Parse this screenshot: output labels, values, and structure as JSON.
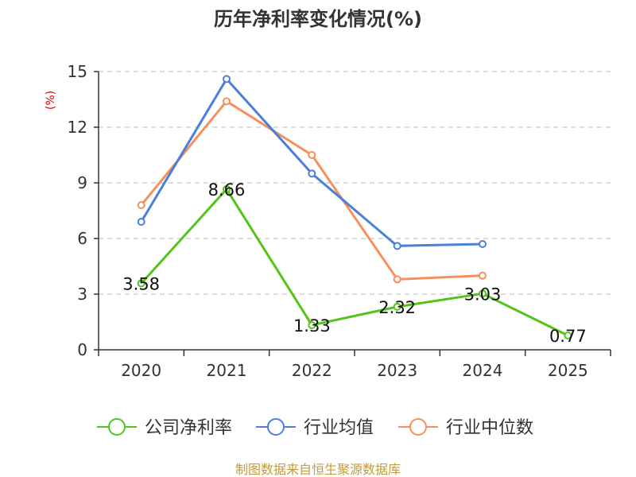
{
  "chart_data": {
    "type": "line",
    "title": "历年净利率变化情况(%)",
    "ylabel": "(%)",
    "xlabel": "",
    "categories": [
      "2020",
      "2021",
      "2022",
      "2023",
      "2024",
      "2025"
    ],
    "ylim": [
      0,
      15
    ],
    "yticks": [
      0,
      3,
      6,
      9,
      12,
      15
    ],
    "grid": true,
    "legend_position": "bottom",
    "series": [
      {
        "name": "公司净利率",
        "color": "#52c41a",
        "values": [
          3.58,
          8.66,
          1.33,
          2.32,
          3.03,
          0.77
        ],
        "labels": [
          "3.58",
          "8.66",
          "1.33",
          "2.32",
          "3.03",
          "0.77"
        ]
      },
      {
        "name": "行业均值",
        "color": "#4a7fdc",
        "values": [
          6.9,
          14.6,
          9.5,
          5.6,
          5.7,
          null
        ]
      },
      {
        "name": "行业中位数",
        "color": "#f7905b",
        "values": [
          7.8,
          13.4,
          10.5,
          3.8,
          4.0,
          null
        ]
      }
    ]
  },
  "source": "制图数据来自恒生聚源数据库"
}
